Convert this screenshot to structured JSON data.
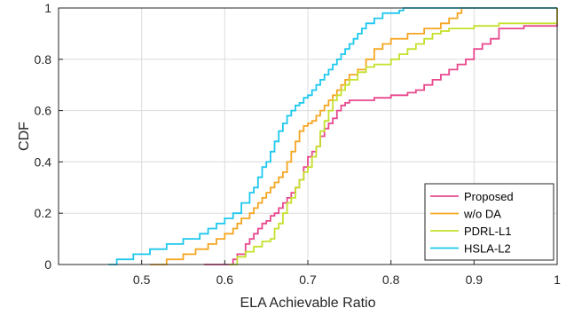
{
  "chart_data": {
    "type": "line",
    "xlabel": "ELA Achievable Ratio",
    "ylabel": "CDF",
    "xlim": [
      0.4,
      1.0
    ],
    "ylim": [
      0,
      1
    ],
    "x_ticks": [
      "0.5",
      "0.6",
      "0.7",
      "0.8",
      "0.9",
      "1"
    ],
    "y_ticks": [
      "0",
      "0.2",
      "0.4",
      "0.6",
      "0.8",
      "1"
    ],
    "grid": true,
    "legend_position": "bottom-right",
    "series": [
      {
        "name": "Proposed",
        "color": "#e8488e",
        "x": [
          0.575,
          0.61,
          0.615,
          0.625,
          0.63,
          0.635,
          0.64,
          0.645,
          0.65,
          0.655,
          0.66,
          0.665,
          0.67,
          0.675,
          0.68,
          0.685,
          0.69,
          0.695,
          0.7,
          0.705,
          0.71,
          0.715,
          0.72,
          0.725,
          0.73,
          0.735,
          0.74,
          0.745,
          0.75,
          0.755,
          0.76,
          0.78,
          0.8,
          0.82,
          0.83,
          0.84,
          0.85,
          0.86,
          0.87,
          0.88,
          0.89,
          0.9,
          0.91,
          0.92,
          0.93,
          0.96,
          1.0
        ],
        "y": [
          0.0,
          0.02,
          0.04,
          0.08,
          0.1,
          0.12,
          0.14,
          0.16,
          0.17,
          0.19,
          0.2,
          0.22,
          0.24,
          0.26,
          0.28,
          0.3,
          0.33,
          0.38,
          0.42,
          0.44,
          0.46,
          0.5,
          0.53,
          0.55,
          0.57,
          0.6,
          0.62,
          0.63,
          0.64,
          0.64,
          0.64,
          0.65,
          0.66,
          0.67,
          0.68,
          0.7,
          0.72,
          0.74,
          0.76,
          0.78,
          0.8,
          0.84,
          0.86,
          0.88,
          0.92,
          0.93,
          1.0
        ]
      },
      {
        "name": "w/o DA",
        "color": "#f5a623",
        "x": [
          0.51,
          0.53,
          0.55,
          0.565,
          0.58,
          0.59,
          0.6,
          0.61,
          0.615,
          0.62,
          0.63,
          0.635,
          0.64,
          0.645,
          0.65,
          0.655,
          0.66,
          0.665,
          0.67,
          0.675,
          0.68,
          0.685,
          0.69,
          0.695,
          0.7,
          0.705,
          0.71,
          0.715,
          0.72,
          0.725,
          0.73,
          0.735,
          0.74,
          0.745,
          0.75,
          0.76,
          0.77,
          0.78,
          0.79,
          0.8,
          0.82,
          0.84,
          0.86,
          0.87,
          0.88,
          0.885
        ],
        "y": [
          0.0,
          0.02,
          0.04,
          0.06,
          0.08,
          0.1,
          0.12,
          0.14,
          0.16,
          0.18,
          0.2,
          0.22,
          0.24,
          0.26,
          0.28,
          0.3,
          0.32,
          0.34,
          0.36,
          0.4,
          0.44,
          0.48,
          0.52,
          0.54,
          0.55,
          0.56,
          0.58,
          0.6,
          0.62,
          0.64,
          0.66,
          0.68,
          0.7,
          0.72,
          0.74,
          0.76,
          0.8,
          0.84,
          0.86,
          0.88,
          0.9,
          0.92,
          0.94,
          0.96,
          0.98,
          1.0
        ]
      },
      {
        "name": "PDRL-L1",
        "color": "#c6e02c",
        "x": [
          0.605,
          0.615,
          0.625,
          0.635,
          0.645,
          0.655,
          0.66,
          0.665,
          0.67,
          0.675,
          0.68,
          0.685,
          0.69,
          0.695,
          0.7,
          0.705,
          0.71,
          0.715,
          0.72,
          0.725,
          0.73,
          0.735,
          0.74,
          0.745,
          0.75,
          0.76,
          0.77,
          0.78,
          0.79,
          0.8,
          0.81,
          0.82,
          0.83,
          0.84,
          0.85,
          0.86,
          0.87,
          0.9,
          0.93,
          0.95,
          1.0
        ],
        "y": [
          0.0,
          0.03,
          0.05,
          0.07,
          0.09,
          0.1,
          0.14,
          0.16,
          0.2,
          0.24,
          0.26,
          0.3,
          0.33,
          0.36,
          0.38,
          0.42,
          0.46,
          0.52,
          0.56,
          0.6,
          0.64,
          0.66,
          0.68,
          0.7,
          0.72,
          0.75,
          0.77,
          0.78,
          0.78,
          0.8,
          0.82,
          0.84,
          0.86,
          0.88,
          0.9,
          0.91,
          0.92,
          0.93,
          0.94,
          0.94,
          1.0
        ]
      },
      {
        "name": "HSLA-L2",
        "color": "#1ec8ee",
        "x": [
          0.46,
          0.47,
          0.49,
          0.51,
          0.53,
          0.55,
          0.57,
          0.58,
          0.59,
          0.6,
          0.61,
          0.62,
          0.63,
          0.635,
          0.64,
          0.645,
          0.65,
          0.655,
          0.66,
          0.665,
          0.67,
          0.675,
          0.68,
          0.685,
          0.69,
          0.695,
          0.7,
          0.705,
          0.71,
          0.715,
          0.72,
          0.725,
          0.73,
          0.735,
          0.74,
          0.745,
          0.75,
          0.755,
          0.76,
          0.765,
          0.77,
          0.78,
          0.79,
          0.8,
          0.81,
          0.815
        ],
        "y": [
          0.0,
          0.02,
          0.04,
          0.06,
          0.08,
          0.1,
          0.12,
          0.14,
          0.16,
          0.18,
          0.2,
          0.24,
          0.28,
          0.3,
          0.34,
          0.38,
          0.4,
          0.44,
          0.48,
          0.52,
          0.55,
          0.58,
          0.6,
          0.62,
          0.63,
          0.65,
          0.66,
          0.68,
          0.7,
          0.72,
          0.74,
          0.76,
          0.78,
          0.8,
          0.82,
          0.84,
          0.86,
          0.88,
          0.9,
          0.92,
          0.94,
          0.96,
          0.98,
          0.98,
          0.99,
          1.0
        ]
      }
    ]
  }
}
